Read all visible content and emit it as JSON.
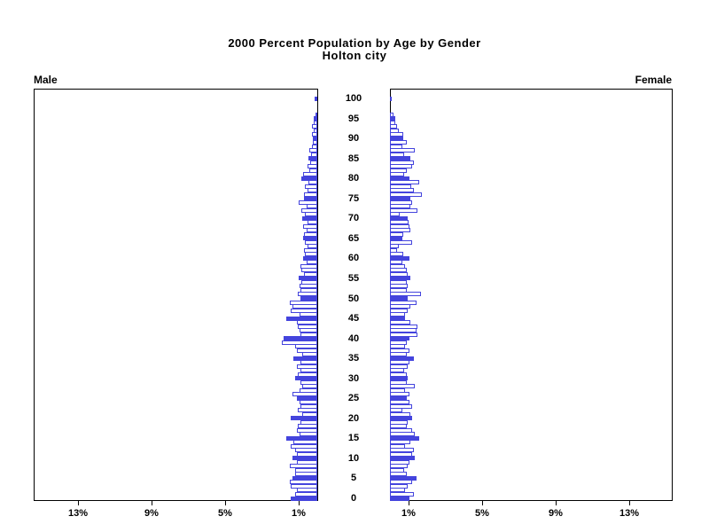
{
  "title": {
    "line1": "2000 Percent Population by Age by Gender",
    "line2": "Holton city"
  },
  "panel_labels": {
    "left": "Male",
    "right": "Female"
  },
  "chart_data": {
    "type": "bar",
    "subtype": "population-pyramid",
    "title": "2000 Percent Population by Age by Gender",
    "subtitle": "Holton city",
    "unit": "percent of population",
    "orientation": "horizontal, ages stacked vertically, age 0 at bottom and age 100 at top",
    "age_min": 0,
    "age_max": 100,
    "age_ticks": [
      0,
      5,
      10,
      15,
      20,
      25,
      30,
      35,
      40,
      45,
      50,
      55,
      60,
      65,
      70,
      75,
      80,
      85,
      90,
      95,
      100
    ],
    "pct_ticks": [
      1,
      5,
      9,
      13
    ],
    "pct_tick_labels": [
      "1%",
      "5%",
      "9%",
      "13%"
    ],
    "pct_axis_max": 15.4,
    "grid": false,
    "legend": false,
    "bar_fill_rule": "ages divisible by 5 drawn as solid blue bars; all other ages drawn white with blue outline",
    "colors": {
      "bar_outline": "#4444dd",
      "bar_fill_solid": "#4444dd",
      "bar_fill_hollow": "#ffffff",
      "axis": "#000000",
      "text": "#000000",
      "background": "#ffffff"
    },
    "series": [
      {
        "name": "Male",
        "side": "left",
        "values": [
          1.45,
          1.2,
          1.1,
          1.45,
          1.5,
          1.35,
          1.2,
          1.2,
          1.5,
          1.1,
          1.35,
          1.1,
          1.2,
          1.45,
          1.3,
          1.7,
          0.95,
          1.1,
          1.05,
          0.9,
          1.45,
          0.8,
          1.05,
          0.9,
          0.95,
          1.1,
          1.35,
          0.95,
          0.8,
          0.9,
          1.2,
          1.05,
          0.9,
          1.1,
          0.9,
          1.3,
          0.8,
          1.1,
          1.2,
          1.9,
          1.85,
          0.9,
          0.95,
          1.05,
          1.1,
          1.7,
          0.95,
          1.45,
          1.35,
          1.5,
          0.9,
          1.05,
          0.9,
          0.95,
          0.85,
          1.0,
          0.7,
          0.85,
          0.9,
          0.6,
          0.75,
          0.65,
          0.7,
          0.55,
          0.65,
          0.75,
          0.7,
          0.6,
          0.75,
          0.55,
          0.8,
          0.65,
          0.85,
          0.6,
          1.0,
          0.7,
          0.7,
          0.55,
          0.65,
          0.5,
          0.85,
          0.75,
          0.45,
          0.55,
          0.4,
          0.5,
          0.35,
          0.45,
          0.3,
          0.25,
          0.25,
          0.3,
          0.2,
          0.3,
          0.2,
          0.2,
          0.1,
          0,
          0,
          0,
          0.15
        ]
      },
      {
        "name": "Female",
        "side": "right",
        "values": [
          1.05,
          1.3,
          0.8,
          0.95,
          1.2,
          1.45,
          0.9,
          0.75,
          0.95,
          1.05,
          1.35,
          1.2,
          1.3,
          0.8,
          1.1,
          1.6,
          1.35,
          1.2,
          0.9,
          0.95,
          1.2,
          1.1,
          0.65,
          1.2,
          1.05,
          0.9,
          1.05,
          0.8,
          1.35,
          0.9,
          0.95,
          0.9,
          0.75,
          0.95,
          1.05,
          1.3,
          0.9,
          1.05,
          0.8,
          0.9,
          1.05,
          1.5,
          1.45,
          1.5,
          1.1,
          0.8,
          0.8,
          0.95,
          1.1,
          1.45,
          0.95,
          1.7,
          0.9,
          0.95,
          0.9,
          1.1,
          0.95,
          0.9,
          0.8,
          0.65,
          1.05,
          0.7,
          0.4,
          0.5,
          1.2,
          0.65,
          0.7,
          1.1,
          1.05,
          1.0,
          0.95,
          0.55,
          1.5,
          1.1,
          1.2,
          1.1,
          1.75,
          1.3,
          1.15,
          1.6,
          1.05,
          0.75,
          0.9,
          1.2,
          1.3,
          1.1,
          0.75,
          1.35,
          0.65,
          0.9,
          0.7,
          0.7,
          0.5,
          0.4,
          0.3,
          0.3,
          0.2,
          0,
          0,
          0,
          0.1
        ]
      }
    ]
  }
}
